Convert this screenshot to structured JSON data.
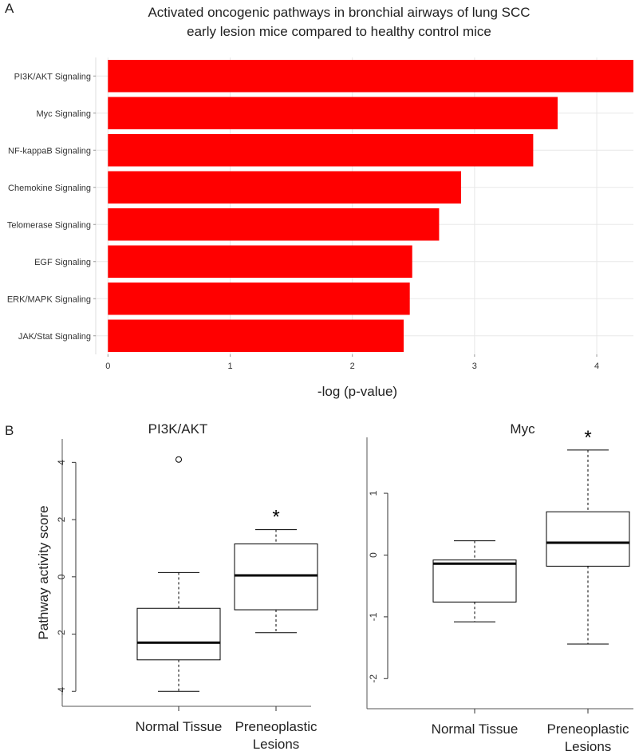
{
  "panel_labels": {
    "a": "A",
    "b": "B"
  },
  "colors": {
    "bar": "#ff0000",
    "box_stroke": "#000000",
    "grid": "#e8e8e8",
    "panel_bg": "#ffffff"
  },
  "chart_data": [
    {
      "type": "bar",
      "orientation": "horizontal",
      "title": "Activated oncogenic pathways in bronchial airways of lung SCC early lesion mice compared to healthy control mice",
      "title_lines": [
        "Activated oncogenic pathways in bronchial airways of lung SCC",
        "early lesion mice compared to healthy control mice"
      ],
      "xlabel": "-log (p-value)",
      "ylabel": "",
      "categories": [
        "PI3K/AKT Signaling",
        "Myc Signaling",
        "NF-kappaB Signaling",
        "Chemokine Signaling",
        "Telomerase Signaling",
        "EGF Signaling",
        "ERK/MAPK Signaling",
        "JAK/Stat Signaling"
      ],
      "values": [
        4.3,
        3.68,
        3.48,
        2.89,
        2.71,
        2.49,
        2.47,
        2.42
      ],
      "xlim": [
        -0.1,
        4.3
      ],
      "xticks": [
        0,
        1,
        2,
        3,
        4
      ],
      "grid": true
    },
    {
      "type": "box",
      "title": "PI3K/AKT",
      "ylabel": "Pathway activity score",
      "categories": [
        "Normal Tissue",
        "Preneoplastic Lesions"
      ],
      "category_lines": [
        [
          "Normal Tissue"
        ],
        [
          "Preneoplastic",
          "Lesions"
        ]
      ],
      "boxes": [
        {
          "whisker_low": -4.0,
          "q1": -2.9,
          "median": -2.3,
          "q3": -1.1,
          "whisker_high": 0.15,
          "outliers": [
            4.1
          ]
        },
        {
          "whisker_low": -1.95,
          "q1": -1.15,
          "median": 0.05,
          "q3": 1.15,
          "whisker_high": 1.65,
          "outliers": []
        }
      ],
      "ylim": [
        -4.3,
        4.4
      ],
      "yticks": [
        -4,
        -2,
        0,
        2,
        4
      ],
      "significance": [
        "",
        "*"
      ]
    },
    {
      "type": "box",
      "title": "Myc",
      "ylabel": "",
      "categories": [
        "Normal Tissue",
        "Preneoplastic Lesions"
      ],
      "category_lines": [
        [
          "Normal Tissue"
        ],
        [
          "Preneoplastic",
          "Lesions"
        ]
      ],
      "boxes": [
        {
          "whisker_low": -1.08,
          "q1": -0.76,
          "median": -0.14,
          "q3": -0.08,
          "whisker_high": 0.23,
          "outliers": []
        },
        {
          "whisker_low": -1.44,
          "q1": -0.18,
          "median": 0.2,
          "q3": 0.7,
          "whisker_high": 1.7,
          "outliers": []
        }
      ],
      "ylim": [
        -2.5,
        1.75
      ],
      "yticks": [
        -2,
        -1,
        0,
        1
      ],
      "significance": [
        "",
        "*"
      ]
    }
  ]
}
